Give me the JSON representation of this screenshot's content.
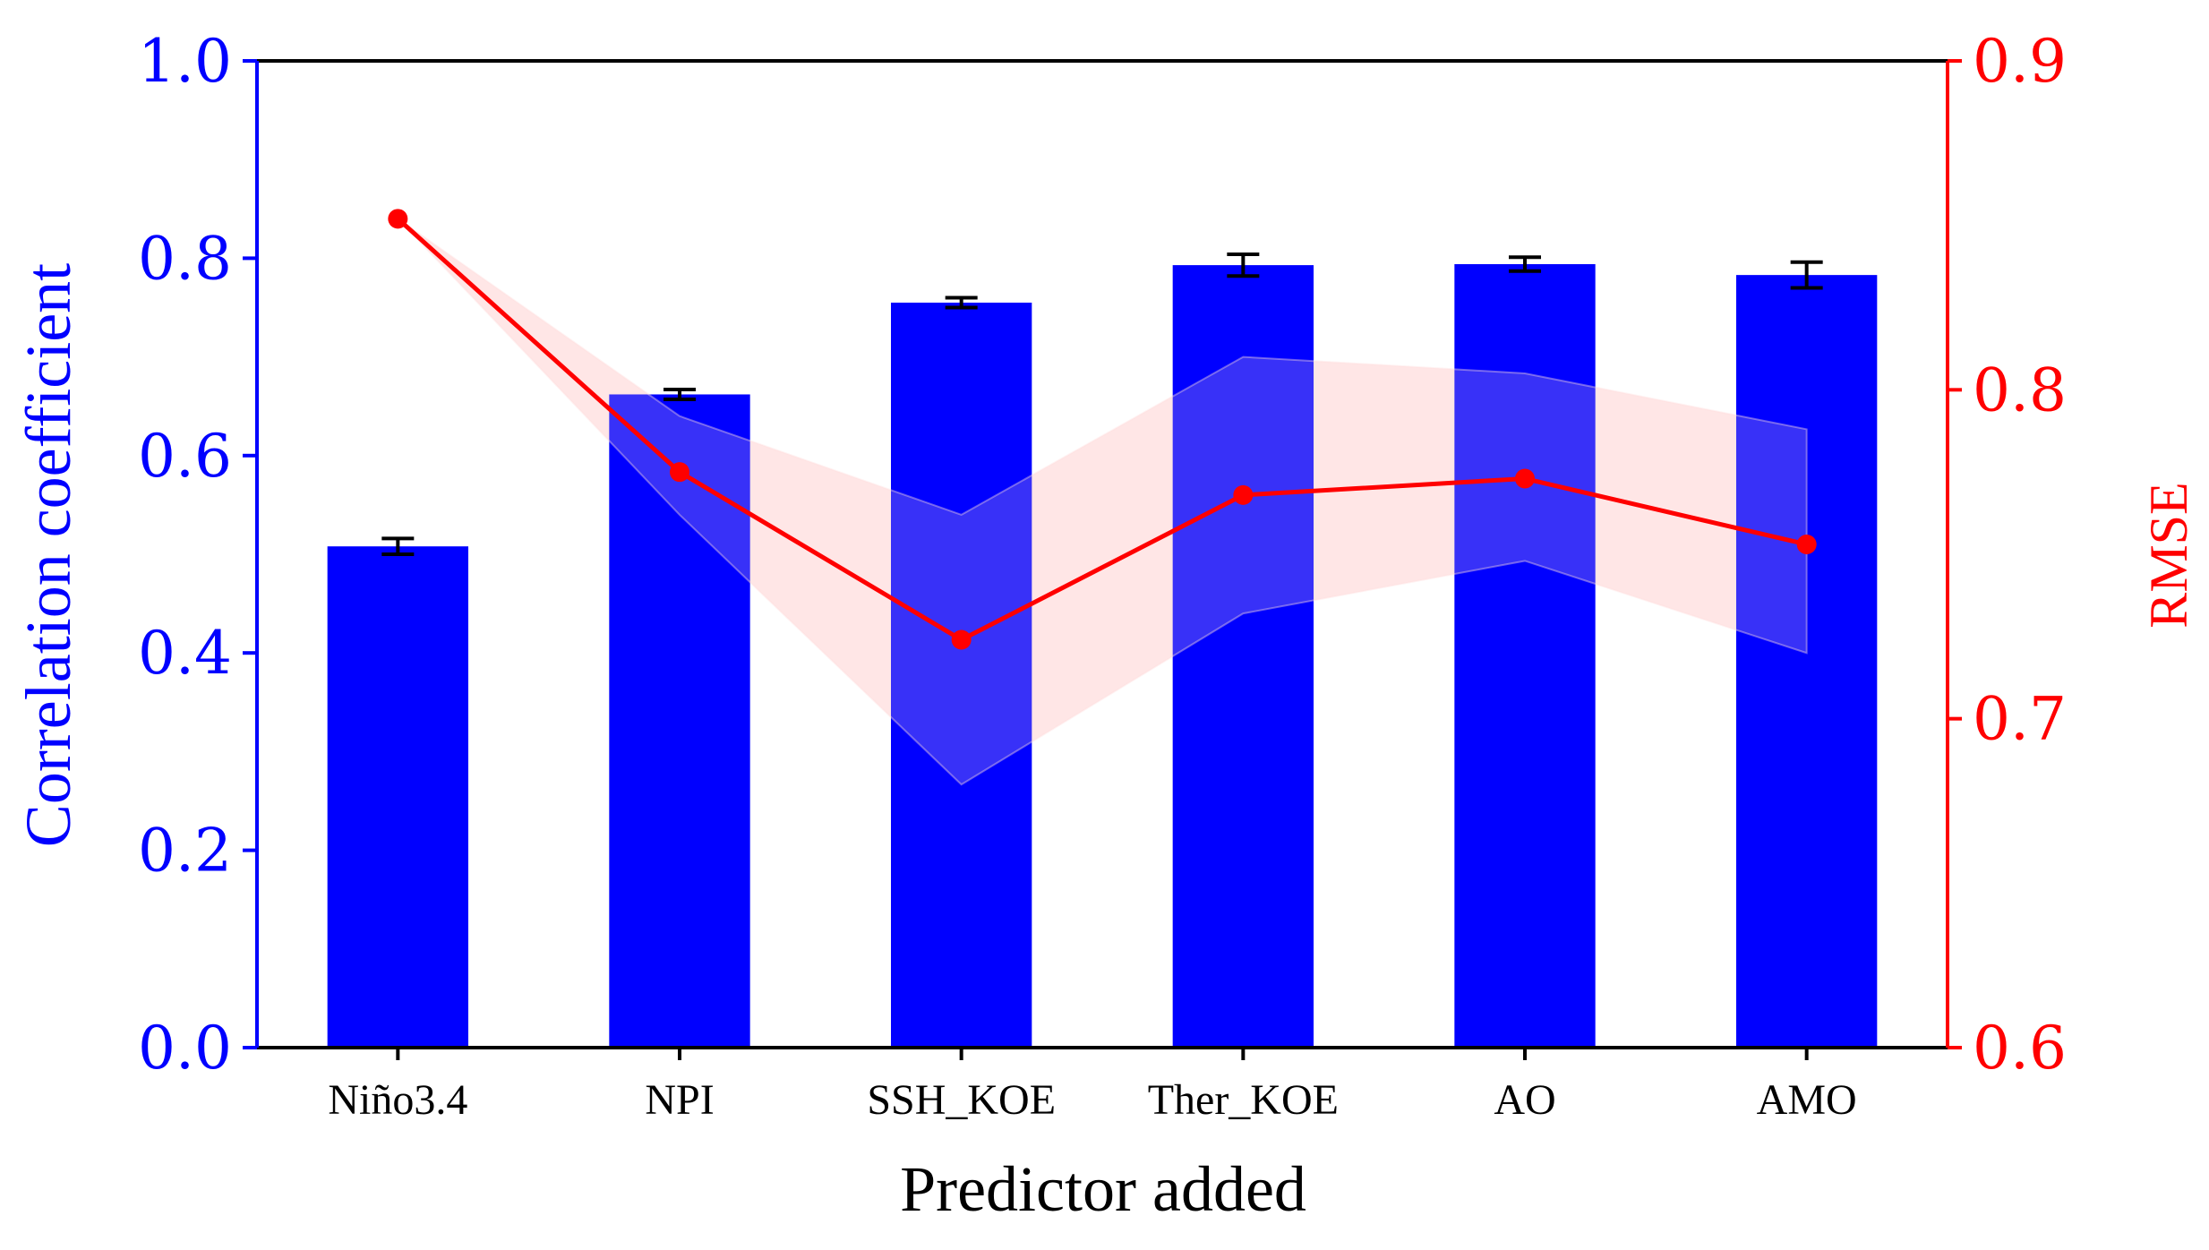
{
  "chart_data": {
    "type": "bar",
    "xlabel": "Predictor added",
    "categories": [
      "Niño3.4",
      "NPI",
      "SSH_KOE",
      "Ther_KOE",
      "AO",
      "AMO"
    ],
    "left_axis": {
      "label": "Correlation coefficient",
      "ylim": [
        0.0,
        1.0
      ],
      "ticks": [
        "0.0",
        "0.2",
        "0.4",
        "0.6",
        "0.8",
        "1.0"
      ],
      "color": "#0000ff"
    },
    "right_axis": {
      "label": "RMSE",
      "ylim": [
        0.6,
        0.9
      ],
      "ticks": [
        "0.6",
        "0.7",
        "0.8",
        "0.9"
      ],
      "color": "#ff0000"
    },
    "series": [
      {
        "kind": "bar",
        "axis": "left",
        "color": "#0000ff",
        "values": [
          0.508,
          0.662,
          0.755,
          0.793,
          0.794,
          0.783
        ],
        "error": [
          0.008,
          0.005,
          0.005,
          0.011,
          0.007,
          0.013
        ]
      },
      {
        "kind": "line",
        "axis": "right",
        "color": "#ff0000",
        "values": [
          0.852,
          0.775,
          0.724,
          0.768,
          0.773,
          0.753
        ],
        "band_upper": [
          0.852,
          0.792,
          0.762,
          0.81,
          0.805,
          0.788
        ],
        "band_lower": [
          0.852,
          0.762,
          0.68,
          0.732,
          0.748,
          0.72
        ],
        "band_color": "#ffcccc"
      }
    ],
    "grid": false
  }
}
